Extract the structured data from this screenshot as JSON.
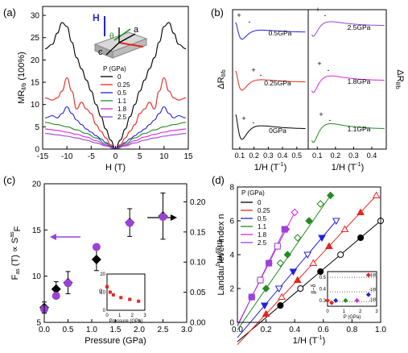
{
  "chart_data": [
    {
      "panel": "(a)",
      "type": "line",
      "xlabel": "H (T)",
      "ylabel": "MR",
      "ylabel_sub": "ll/b",
      "ylabel_unit": " (100%)",
      "xlim": [
        -15,
        15
      ],
      "ylim": [
        0,
        32
      ],
      "xticks": [
        -15,
        -10,
        -5,
        0,
        5,
        10,
        15
      ],
      "yticks": [
        0,
        5,
        10,
        15,
        20,
        25,
        30
      ],
      "legend_title": "P (GPa)",
      "inset_labels": {
        "H": "H",
        "a": "a",
        "c": "c",
        "theta": "θ"
      },
      "series": [
        {
          "name": "0",
          "color": "#000000",
          "x": [
            -14.5,
            -13,
            -12,
            -11,
            -10,
            -9,
            -8,
            -7,
            -6,
            -5,
            -4,
            -3,
            -2,
            -1,
            0,
            1,
            2,
            3,
            4,
            5,
            6,
            7,
            8,
            9,
            10,
            11,
            12,
            13,
            14.5
          ],
          "y": [
            22.5,
            23.5,
            26,
            28.4,
            27.5,
            24,
            20.5,
            18,
            15.5,
            13,
            10,
            7.3,
            4.5,
            2,
            0,
            2,
            4.5,
            7.3,
            10,
            13,
            15.5,
            18,
            20.5,
            24,
            27.5,
            28.4,
            26,
            23.5,
            22.5
          ]
        },
        {
          "name": "0.25",
          "color": "#e8251f",
          "x": [
            -14.5,
            -13,
            -12,
            -11,
            -10,
            -9,
            -8,
            -7,
            -6,
            -5,
            -4,
            -3,
            -2,
            -1,
            0,
            1,
            2,
            3,
            4,
            5,
            6,
            7,
            8,
            9,
            10,
            11,
            12,
            13,
            14.5
          ],
          "y": [
            11.5,
            11,
            11.5,
            13,
            16,
            13,
            9,
            10.5,
            9,
            8,
            5.5,
            4,
            2.5,
            1,
            0,
            1,
            2.5,
            4,
            5.5,
            8,
            9,
            10.5,
            9,
            13,
            16,
            13,
            11.5,
            11,
            11.5
          ]
        },
        {
          "name": "0.5",
          "color": "#2222dd",
          "x": [
            -14.5,
            -13,
            -12,
            -11,
            -10,
            -9,
            -8,
            -7,
            -6,
            -5,
            -4,
            -3,
            -2,
            -1,
            0,
            1,
            2,
            3,
            4,
            5,
            6,
            7,
            8,
            9,
            10,
            11,
            12,
            13,
            14.5
          ],
          "y": [
            7,
            7.5,
            7,
            8,
            9.5,
            8,
            6.5,
            5.5,
            4.5,
            3.8,
            3,
            2.3,
            1.5,
            0.7,
            0,
            0.7,
            1.5,
            2.3,
            3,
            3.8,
            4.5,
            5.5,
            6.5,
            8,
            9.5,
            8,
            7,
            7.5,
            7
          ]
        },
        {
          "name": "1.1",
          "color": "#228b22",
          "x": [
            -14.5,
            -12,
            -10,
            -8,
            -6,
            -4,
            -2,
            0,
            2,
            4,
            6,
            8,
            10,
            12,
            14.5
          ],
          "y": [
            6,
            5.5,
            5,
            4.3,
            3.5,
            2.5,
            1.2,
            0,
            1.2,
            2.5,
            3.5,
            4.3,
            5,
            5.5,
            6
          ]
        },
        {
          "name": "1.8",
          "color": "#dd22dd",
          "x": [
            -14.5,
            -12,
            -10,
            -8,
            -6,
            -4,
            -2,
            0,
            2,
            4,
            6,
            8,
            10,
            12,
            14.5
          ],
          "y": [
            4.5,
            4.2,
            3.8,
            3.3,
            2.7,
            1.9,
            0.9,
            0,
            0.9,
            1.9,
            2.7,
            3.3,
            3.8,
            4.2,
            4.5
          ]
        },
        {
          "name": "2.5",
          "color": "#9a42d6",
          "x": [
            -14.5,
            -12,
            -10,
            -8,
            -6,
            -4,
            -2,
            0,
            2,
            4,
            6,
            8,
            10,
            12,
            14.5
          ],
          "y": [
            3.5,
            3.2,
            2.9,
            2.5,
            2,
            1.4,
            0.7,
            0,
            0.7,
            1.4,
            2,
            2.5,
            2.9,
            3.2,
            3.5
          ]
        }
      ]
    },
    {
      "panel": "(b)",
      "type": "line",
      "xlabel": "1/H (T",
      "xlabel_exp": "-1",
      "xlabel_close": ")",
      "ylabel_left": "ΔR",
      "ylabel_left_sub": "ll/b",
      "ylabel_right": "ΔR",
      "ylabel_right_sub": "ll/b",
      "left_xticks": [
        "0.1",
        "0.2",
        "0.3",
        "0.4",
        "0.5"
      ],
      "right_xticks": [
        "0.1",
        "0.2",
        "0.3",
        "0.4"
      ],
      "curve_labels": [
        "0.5GPa",
        "0.25GPa",
        "0GPa",
        "2.5GPa",
        "1.8GPa",
        "1.1GPa"
      ],
      "marker_labels": [
        "+",
        "-",
        "+",
        "-",
        "+",
        "-",
        "+",
        "-",
        "+",
        "-",
        "+",
        "-"
      ]
    },
    {
      "panel": "(c)",
      "type": "scatter",
      "xlabel": "Pressure (GPa)",
      "ylabel_left": "F",
      "ylabel_left_sub": "as",
      "ylabel_left_rest": " (T) ∝ S",
      "ylabel_left_sup": "as",
      "ylabel_left_sub2": "F",
      "ylabel_right": "m",
      "ylabel_right_sub": "as",
      "ylabel_right_rest": "/m",
      "ylabel_right_sub2": "0",
      "xlim": [
        0,
        3
      ],
      "ylim_left": [
        5,
        20
      ],
      "ylim_right": [
        0.0,
        0.23
      ],
      "xticks": [
        "0.0",
        "0.5",
        "1.0",
        "1.5",
        "2.0",
        "2.5",
        "3.0"
      ],
      "yticks_left": [
        "5",
        "10",
        "15",
        "20"
      ],
      "yticks_right": [
        "0.00",
        "0.05",
        "0.10",
        "0.15",
        "0.20"
      ],
      "series": [
        {
          "name": "F_as",
          "color": "#000000",
          "x": [
            0,
            0.25,
            0.5,
            1.1,
            1.8,
            2.5
          ],
          "y": [
            6.6,
            8.6,
            9.3,
            11.8,
            15.8,
            16.5
          ],
          "err": [
            0.6,
            0.8,
            1.2,
            1.2,
            1.5,
            2.5
          ]
        },
        {
          "name": "m_as",
          "color": "#9a42d6",
          "x": [
            0,
            0.25,
            0.5,
            1.1,
            1.8,
            2.5
          ],
          "y": [
            0.022,
            0.044,
            0.065,
            0.125,
            0.165,
            0.175
          ]
        }
      ],
      "inset": {
        "ylabel": "g",
        "xlabel": "Pressure (GPa)",
        "xticks": [
          "0",
          "1",
          "2",
          "3"
        ],
        "yticks": [
          "0",
          "10",
          "20"
        ],
        "x": [
          0,
          0.25,
          0.5,
          1.1,
          1.8,
          2.5
        ],
        "y": [
          13,
          10,
          8.5,
          7,
          6,
          5
        ]
      }
    },
    {
      "panel": "(d)",
      "type": "scatter",
      "xlabel": "1/H (T",
      "xlabel_exp": "-1",
      "xlabel_close": ")",
      "ylabel": "Landau level index n",
      "xlim": [
        0,
        1
      ],
      "ylim": [
        0,
        8
      ],
      "xticks": [
        "0.0",
        "0.2",
        "0.4",
        "0.6",
        "0.8",
        "1.0"
      ],
      "yticks": [
        "0",
        "2",
        "4",
        "6",
        "8"
      ],
      "legend_title": "P (GPa)",
      "series": [
        {
          "name": "0",
          "color": "#000000",
          "marker": "circle",
          "x": [
            0.3,
            0.44,
            0.58,
            0.72,
            0.86,
            1.0
          ],
          "y": [
            1,
            2,
            3,
            4,
            5,
            6
          ]
        },
        {
          "name": "0.25",
          "color": "#e8251f",
          "marker": "triangle-up",
          "x": [
            0.2,
            0.31,
            0.42,
            0.53,
            0.64,
            0.75,
            0.86,
            0.97
          ],
          "y": [
            0.5,
            1.5,
            2.5,
            3.5,
            4.5,
            5.5,
            6.5,
            7.5
          ]
        },
        {
          "name": "0.5",
          "color": "#2222dd",
          "marker": "triangle-down",
          "x": [
            0.19,
            0.29,
            0.39,
            0.49,
            0.59,
            0.69
          ],
          "y": [
            1,
            2,
            3,
            4,
            5,
            6
          ]
        },
        {
          "name": "1.1",
          "color": "#228b22",
          "marker": "diamond",
          "x": [
            0.2,
            0.3,
            0.35,
            0.42,
            0.5,
            0.58,
            0.65
          ],
          "y": [
            2,
            3.5,
            4,
            5,
            6,
            7,
            7.5
          ]
        },
        {
          "name": "1.8",
          "color": "#dd22dd",
          "marker": "diamond",
          "x": [
            0.1,
            0.16,
            0.22,
            0.28,
            0.34,
            0.4
          ],
          "y": [
            1.5,
            2.5,
            3.5,
            4.5,
            5.5,
            6.5
          ]
        },
        {
          "name": "2.5",
          "color": "#9a42d6",
          "marker": "square",
          "x": [
            0.1,
            0.16,
            0.22,
            0.28,
            0.33
          ],
          "y": [
            1.5,
            2.5,
            3.5,
            4.5,
            5.5
          ]
        }
      ],
      "inset": {
        "ylabel": "β−δ",
        "xlabel": "P (GPa)",
        "xticks": [
          "0",
          "1",
          "2",
          "3"
        ],
        "yticks": [
          "0.3",
          "0.4",
          "0.5"
        ],
        "ref_labels": [
          "1/8",
          "-1/8",
          "-1/8"
        ],
        "points": [
          {
            "x": 0,
            "y": 0.3,
            "color": "#e8251f"
          },
          {
            "x": 0.25,
            "y": 0.28,
            "color": "#e8251f"
          },
          {
            "x": 0.5,
            "y": 0.3,
            "color": "#2222dd"
          },
          {
            "x": 1.1,
            "y": 0.3,
            "color": "#228b22"
          },
          {
            "x": 1.8,
            "y": 0.3,
            "color": "#dd22dd"
          },
          {
            "x": 2.5,
            "y": 0.52,
            "color": "#e8251f"
          },
          {
            "x": 2.5,
            "y": 0.35,
            "color": "#2222dd"
          }
        ]
      }
    }
  ]
}
